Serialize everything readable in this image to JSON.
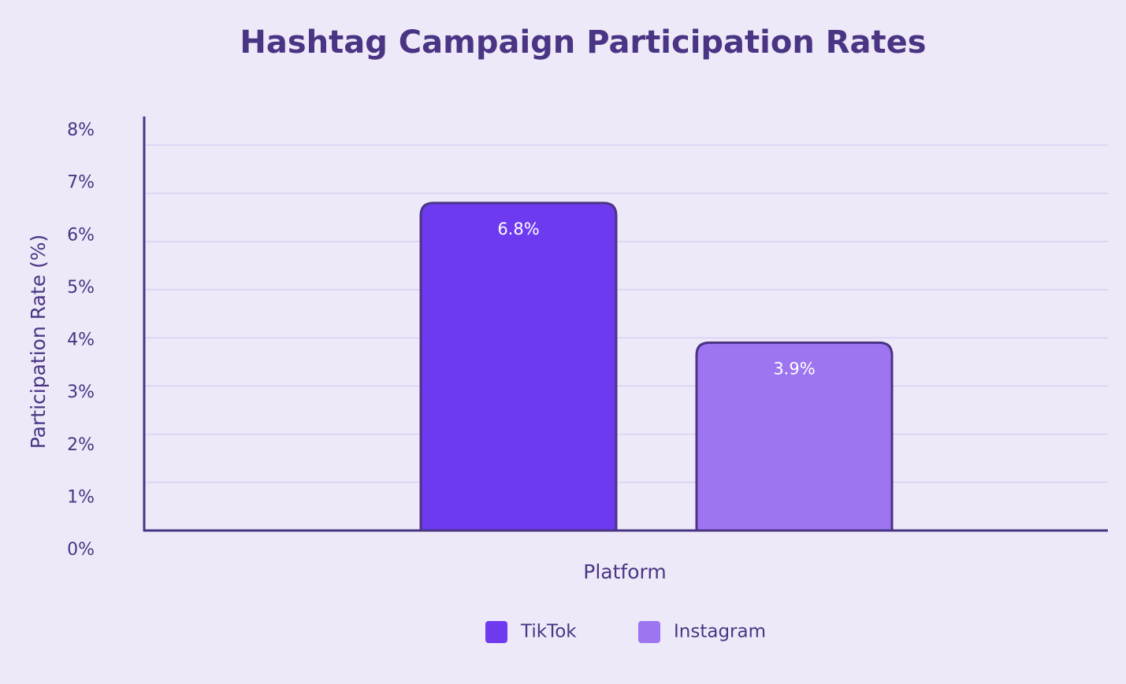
{
  "chart_data": {
    "type": "bar",
    "title": "Hashtag Campaign Participation Rates",
    "xlabel": "Platform",
    "ylabel": "Participation Rate (%)",
    "categories": [
      "TikTok",
      "Instagram"
    ],
    "values": [
      6.8,
      3.9
    ],
    "value_labels": [
      "6.8%",
      "3.9%"
    ],
    "ylim": [
      0,
      8
    ],
    "yticks": [
      "0%",
      "1%",
      "2%",
      "3%",
      "4%",
      "5%",
      "6%",
      "7%",
      "8%"
    ],
    "grid": true,
    "legend": {
      "position": "bottom",
      "entries": [
        "TikTok",
        "Instagram"
      ]
    },
    "colors": [
      "#6E3AF0",
      "#9E75F0"
    ],
    "border_color": "#4A3584"
  }
}
